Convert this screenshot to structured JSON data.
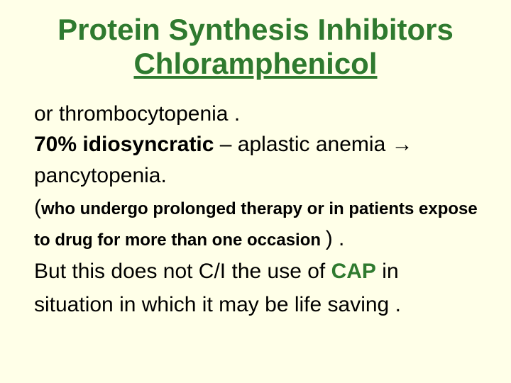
{
  "slide": {
    "title_line1": "Protein Synthesis Inhibitors",
    "title_line2": "Chloramphenicol",
    "p1_a": "or thrombocytopenia .",
    "p1_b_bold": "70% idiosyncratic",
    "p1_c": "  – aplastic anemia → pancytopenia.",
    "p2_open": "(",
    "p2_small": "who undergo prolonged therapy or  in patients expose to drug for more than one occasion ",
    "p2_close": ") .",
    "p3_a": "But this does not C/I the use of ",
    "p3_cap": "CAP",
    "p3_b": " in situation in which it may be life saving .",
    "colors": {
      "background": "#ffffe8",
      "title": "#2f7a2f",
      "body": "#000000",
      "accent": "#2f7a2f"
    },
    "fontsize": {
      "title": 42,
      "body": 30,
      "small": 24
    }
  }
}
